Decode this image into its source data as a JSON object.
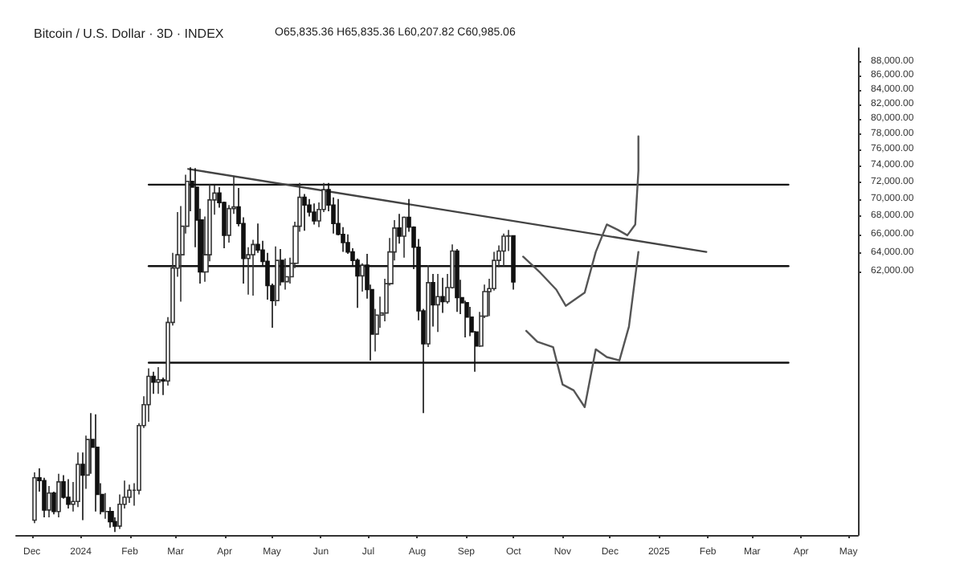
{
  "chart_data": {
    "type": "candlestick",
    "title": "Bitcoin / U.S. Dollar · 3D · INDEX",
    "subtitle": "O65,835.36 H65,835.36 L60,207.82 C60,985.06",
    "x": [
      "2023-12-03",
      "2023-12-06",
      "2023-12-09",
      "2023-12-12",
      "2023-12-15",
      "2023-12-18",
      "2023-12-21",
      "2023-12-24",
      "2023-12-27",
      "2023-12-30",
      "2024-01-02",
      "2024-01-05",
      "2024-01-08",
      "2024-01-11",
      "2024-01-14",
      "2024-01-17",
      "2024-01-20",
      "2024-01-23",
      "2024-01-26",
      "2024-01-29",
      "2024-02-01",
      "2024-02-04",
      "2024-02-07",
      "2024-02-10",
      "2024-02-13",
      "2024-02-16",
      "2024-02-19",
      "2024-02-22",
      "2024-02-25",
      "2024-02-28",
      "2024-03-02",
      "2024-03-05",
      "2024-03-08",
      "2024-03-11",
      "2024-03-14",
      "2024-03-17",
      "2024-03-20",
      "2024-03-23",
      "2024-03-26",
      "2024-03-29",
      "2024-04-01",
      "2024-04-04",
      "2024-04-07",
      "2024-04-10",
      "2024-04-13",
      "2024-04-16",
      "2024-04-19",
      "2024-04-22",
      "2024-04-25",
      "2024-04-28",
      "2024-05-01",
      "2024-05-04",
      "2024-05-07",
      "2024-05-10",
      "2024-05-13",
      "2024-05-16",
      "2024-05-19",
      "2024-05-22",
      "2024-05-25",
      "2024-05-28",
      "2024-05-31",
      "2024-06-03",
      "2024-06-06",
      "2024-06-09",
      "2024-06-12",
      "2024-06-15",
      "2024-06-18",
      "2024-06-21",
      "2024-06-24",
      "2024-06-27",
      "2024-06-30",
      "2024-07-03",
      "2024-07-06",
      "2024-07-09",
      "2024-07-12",
      "2024-07-15",
      "2024-07-18",
      "2024-07-21",
      "2024-07-24",
      "2024-07-27",
      "2024-07-30",
      "2024-08-02",
      "2024-08-05",
      "2024-08-08",
      "2024-08-11",
      "2024-08-14",
      "2024-08-17",
      "2024-08-20",
      "2024-08-23",
      "2024-08-26",
      "2024-08-29",
      "2024-09-01",
      "2024-09-04",
      "2024-09-07",
      "2024-09-10",
      "2024-09-13",
      "2024-09-16",
      "2024-09-19",
      "2024-09-22",
      "2024-09-25",
      "2024-09-28",
      "2024-10-01"
    ],
    "ohlc": [
      [
        41000,
        44400,
        40800,
        44000
      ],
      [
        44000,
        44700,
        43000,
        43800
      ],
      [
        43800,
        44000,
        41200,
        41700
      ],
      [
        41700,
        43400,
        41200,
        42900
      ],
      [
        42900,
        43000,
        41400,
        41600
      ],
      [
        41600,
        44300,
        41200,
        43700
      ],
      [
        43700,
        44200,
        42500,
        42600
      ],
      [
        42600,
        43900,
        41800,
        42100
      ],
      [
        42100,
        43700,
        41600,
        42300
      ],
      [
        42300,
        45900,
        41900,
        45000
      ],
      [
        45000,
        45900,
        41000,
        44200
      ],
      [
        44200,
        47200,
        43200,
        46900
      ],
      [
        46900,
        49000,
        44300,
        46300
      ],
      [
        46300,
        48900,
        41600,
        42800
      ],
      [
        42800,
        43600,
        41400,
        41600
      ],
      [
        41600,
        42900,
        41100,
        41600
      ],
      [
        41600,
        41900,
        40500,
        40900
      ],
      [
        40900,
        41200,
        40200,
        40600
      ],
      [
        40600,
        42800,
        40400,
        42100
      ],
      [
        42100,
        43800,
        41800,
        42600
      ],
      [
        42600,
        43500,
        42200,
        43100
      ],
      [
        43100,
        43600,
        42000,
        43100
      ],
      [
        43100,
        48200,
        42800,
        48000
      ],
      [
        48000,
        50400,
        47800,
        49700
      ],
      [
        49700,
        52800,
        48300,
        52100
      ],
      [
        52100,
        52500,
        50600,
        51600
      ],
      [
        51600,
        52900,
        50600,
        51800
      ],
      [
        51800,
        52000,
        50500,
        51700
      ],
      [
        51700,
        57500,
        51300,
        57000
      ],
      [
        57000,
        64000,
        56700,
        62400
      ],
      [
        62400,
        68500,
        61500,
        63800
      ],
      [
        63800,
        69200,
        59000,
        66900
      ],
      [
        66900,
        72900,
        66100,
        72100
      ],
      [
        72100,
        73800,
        68600,
        71400
      ],
      [
        71400,
        73700,
        64600,
        67600
      ],
      [
        67600,
        68900,
        60800,
        62000
      ],
      [
        62000,
        68000,
        61000,
        63800
      ],
      [
        63800,
        71700,
        63100,
        69900
      ],
      [
        69900,
        71600,
        68200,
        70700
      ],
      [
        70700,
        71400,
        69000,
        69600
      ],
      [
        69600,
        69700,
        64500,
        65900
      ],
      [
        65900,
        69300,
        65100,
        68900
      ],
      [
        68900,
        72700,
        68300,
        69100
      ],
      [
        69100,
        71300,
        66900,
        67200
      ],
      [
        67200,
        67900,
        60800,
        63400
      ],
      [
        63400,
        64600,
        59700,
        63800
      ],
      [
        63800,
        65400,
        59600,
        64900
      ],
      [
        64900,
        67200,
        64000,
        64300
      ],
      [
        64300,
        65300,
        62700,
        63100
      ],
      [
        63100,
        64000,
        59200,
        60600
      ],
      [
        60600,
        60800,
        56500,
        59100
      ],
      [
        59100,
        64700,
        58600,
        63200
      ],
      [
        63200,
        64400,
        60600,
        61000
      ],
      [
        61000,
        63400,
        60200,
        61500
      ],
      [
        61500,
        63500,
        60800,
        62900
      ],
      [
        62900,
        67400,
        62400,
        66900
      ],
      [
        66900,
        71900,
        66300,
        70200
      ],
      [
        70200,
        70600,
        66400,
        69300
      ],
      [
        69300,
        70000,
        68000,
        68500
      ],
      [
        68500,
        69500,
        67100,
        67500
      ],
      [
        67500,
        69600,
        66800,
        68800
      ],
      [
        68800,
        71900,
        68500,
        71100
      ],
      [
        71100,
        71900,
        68600,
        69300
      ],
      [
        69300,
        70200,
        66100,
        67200
      ],
      [
        67200,
        70000,
        65900,
        66000
      ],
      [
        66000,
        66800,
        64100,
        65100
      ],
      [
        65100,
        66000,
        63900,
        64100
      ],
      [
        64100,
        64500,
        62600,
        63200
      ],
      [
        63200,
        63400,
        58400,
        61600
      ],
      [
        61600,
        62900,
        60000,
        62700
      ],
      [
        62700,
        63900,
        59300,
        60200
      ],
      [
        60200,
        60700,
        53500,
        55900
      ],
      [
        55900,
        58300,
        54300,
        57700
      ],
      [
        57700,
        59500,
        56500,
        57900
      ],
      [
        57900,
        61300,
        57100,
        60800
      ],
      [
        60800,
        65600,
        60600,
        64100
      ],
      [
        64100,
        67600,
        63200,
        66700
      ],
      [
        66700,
        68300,
        65000,
        65800
      ],
      [
        65800,
        68000,
        63500,
        67900
      ],
      [
        67900,
        70000,
        66300,
        66800
      ],
      [
        66800,
        66900,
        62300,
        64600
      ],
      [
        64600,
        65500,
        57200,
        58100
      ],
      [
        58100,
        58300,
        49000,
        55000
      ],
      [
        55000,
        62700,
        54700,
        60900
      ],
      [
        60900,
        61800,
        56600,
        58700
      ],
      [
        58700,
        61800,
        56100,
        59500
      ],
      [
        59500,
        61400,
        57900,
        59000
      ],
      [
        59000,
        61800,
        58800,
        60400
      ],
      [
        60400,
        64900,
        60300,
        64200
      ],
      [
        64200,
        64400,
        58000,
        59400
      ],
      [
        59400,
        61200,
        57800,
        58900
      ],
      [
        58900,
        59100,
        55600,
        57500
      ],
      [
        57500,
        58500,
        55700,
        56100
      ],
      [
        56100,
        56200,
        52500,
        54800
      ],
      [
        54800,
        58000,
        54700,
        57600
      ],
      [
        57600,
        60700,
        57400,
        60000
      ],
      [
        60000,
        61300,
        57600,
        60300
      ],
      [
        60300,
        64100,
        60100,
        63200
      ],
      [
        63200,
        64800,
        62500,
        64200
      ],
      [
        64200,
        66100,
        62600,
        65800
      ],
      [
        65800,
        66500,
        64200,
        65835.36
      ],
      [
        65835.36,
        65835.36,
        60207.82,
        60985.06
      ]
    ],
    "series": [
      {
        "type": "line",
        "color": "#111111",
        "x": [
          "2024-02-13",
          "2025-03-24"
        ],
        "values": [
          71700,
          71700
        ]
      },
      {
        "type": "line",
        "color": "#111111",
        "x": [
          "2024-02-13",
          "2025-03-24"
        ],
        "values": [
          62600,
          62600
        ]
      },
      {
        "type": "line",
        "color": "#111111",
        "x": [
          "2024-02-13",
          "2025-03-24"
        ],
        "values": [
          53300,
          53300
        ]
      },
      {
        "type": "line",
        "color": "#444444",
        "x": [
          "2024-03-09",
          "2025-01-31"
        ],
        "values": [
          73600,
          64100
        ]
      },
      {
        "type": "line",
        "color": "#555555",
        "x": [
          "2024-10-07",
          "2024-10-18",
          "2024-10-28",
          "2024-11-03",
          "2024-11-15",
          "2024-11-22",
          "2024-11-29",
          "2024-12-06",
          "2024-12-12",
          "2024-12-17",
          "2024-12-19",
          "2024-12-19"
        ],
        "values": [
          63600,
          61900,
          60200,
          58600,
          59900,
          64100,
          67100,
          66500,
          65900,
          67100,
          73400,
          77700
        ]
      },
      {
        "type": "line",
        "color": "#555555",
        "x": [
          "2024-10-09",
          "2024-10-16",
          "2024-10-26",
          "2024-11-01",
          "2024-11-08",
          "2024-11-15",
          "2024-11-22",
          "2024-11-29",
          "2024-12-07",
          "2024-12-13",
          "2024-12-19"
        ],
        "values": [
          56200,
          55200,
          54700,
          51400,
          50900,
          49500,
          54500,
          53800,
          53500,
          56600,
          64100
        ]
      }
    ],
    "xlim": [
      "2023-11-21",
      "2025-05-07"
    ],
    "xticks": [
      {
        "value": "2023-12-01",
        "label": "Dec"
      },
      {
        "value": "2024-01-01",
        "label": "2024"
      },
      {
        "value": "2024-02-01",
        "label": "Feb"
      },
      {
        "value": "2024-03-01",
        "label": "Mar"
      },
      {
        "value": "2024-04-01",
        "label": "Apr"
      },
      {
        "value": "2024-05-01",
        "label": "May"
      },
      {
        "value": "2024-06-01",
        "label": "Jun"
      },
      {
        "value": "2024-07-01",
        "label": "Jul"
      },
      {
        "value": "2024-08-01",
        "label": "Aug"
      },
      {
        "value": "2024-09-01",
        "label": "Sep"
      },
      {
        "value": "2024-10-01",
        "label": "Oct"
      },
      {
        "value": "2024-11-01",
        "label": "Nov"
      },
      {
        "value": "2024-12-01",
        "label": "Dec"
      },
      {
        "value": "2025-01-01",
        "label": "2025"
      },
      {
        "value": "2025-02-01",
        "label": "Feb"
      },
      {
        "value": "2025-03-01",
        "label": "Mar"
      },
      {
        "value": "2025-04-01",
        "label": "Apr"
      },
      {
        "value": "2025-05-01",
        "label": "May"
      }
    ],
    "ylim": [
      40000,
      90000
    ],
    "log": true,
    "yticks": [
      {
        "value": 62000,
        "label": "62,000.00"
      },
      {
        "value": 64000,
        "label": "64,000.00"
      },
      {
        "value": 66000,
        "label": "66,000.00"
      },
      {
        "value": 68000,
        "label": "68,000.00"
      },
      {
        "value": 70000,
        "label": "70,000.00"
      },
      {
        "value": 72000,
        "label": "72,000.00"
      },
      {
        "value": 74000,
        "label": "74,000.00"
      },
      {
        "value": 76000,
        "label": "76,000.00"
      },
      {
        "value": 78000,
        "label": "78,000.00"
      },
      {
        "value": 80000,
        "label": "80,000.00"
      },
      {
        "value": 82000,
        "label": "82,000.00"
      },
      {
        "value": 84000,
        "label": "84,000.00"
      },
      {
        "value": 86000,
        "label": "86,000.00"
      },
      {
        "value": 88000,
        "label": "88,000.00"
      }
    ],
    "grid": false,
    "marker": "none",
    "line_style": "solid"
  }
}
